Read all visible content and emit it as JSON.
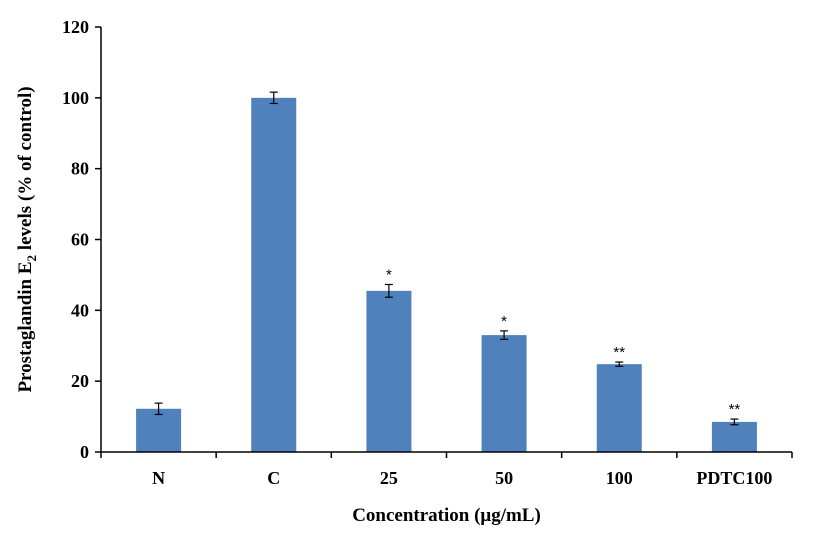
{
  "chart_data": {
    "type": "bar",
    "categories": [
      "N",
      "C",
      "25",
      "50",
      "100",
      "PDTC100"
    ],
    "values": [
      12.2,
      100,
      45.5,
      33,
      24.8,
      8.5
    ],
    "errors": [
      1.6,
      1.6,
      1.8,
      1.2,
      0.6,
      0.8
    ],
    "significance": [
      "",
      "",
      "*",
      "*",
      "**",
      "**"
    ],
    "xlabel": "Concentration (μg/mL)",
    "ylabel_main": "Prostaglandin E",
    "ylabel_sub": "2",
    "ylabel_tail": " levels (% of control)",
    "ylim": [
      0,
      120
    ],
    "yticks": [
      0,
      20,
      40,
      60,
      80,
      100,
      120
    ],
    "grid": false,
    "bar_color": "#4f81bd"
  }
}
